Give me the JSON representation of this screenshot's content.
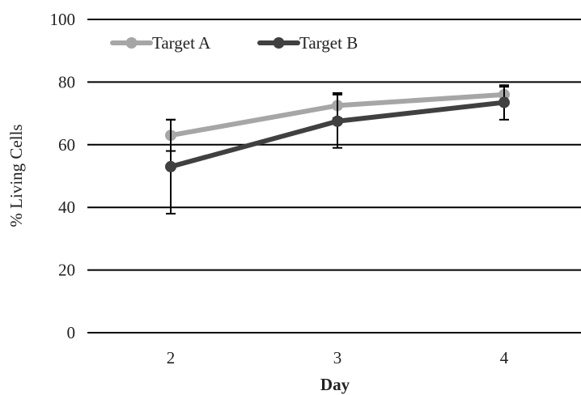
{
  "chart_data": {
    "type": "line",
    "title": "",
    "xlabel": "Day",
    "ylabel": "% Living Cells",
    "categories": [
      "2",
      "3",
      "4"
    ],
    "ylim": [
      0,
      100
    ],
    "yticks": [
      "0",
      "20",
      "40",
      "60",
      "80",
      "100"
    ],
    "grid": true,
    "legend_position": "top-left",
    "series": [
      {
        "name": "Target A",
        "color": "#a6a6a6",
        "values": [
          63,
          72.5,
          76
        ],
        "error": [
          5,
          4,
          2.5
        ]
      },
      {
        "name": "Target B",
        "color": "#404040",
        "values": [
          53,
          67.5,
          73.5
        ],
        "error": [
          15,
          8.5,
          5.5
        ]
      }
    ]
  }
}
